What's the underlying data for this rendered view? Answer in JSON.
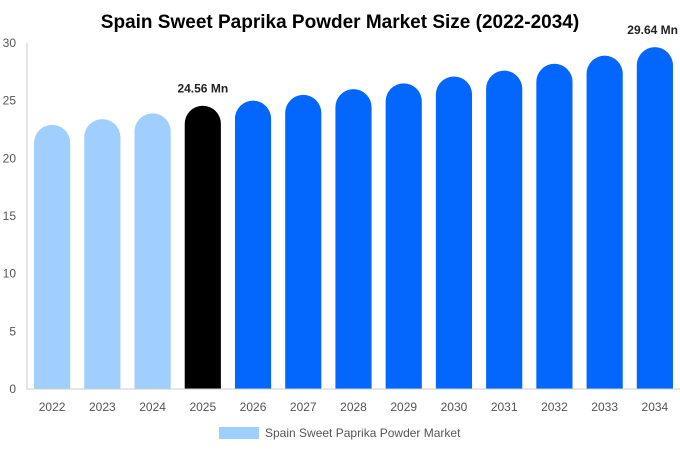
{
  "chart_data": {
    "type": "bar",
    "title": "Spain Sweet Paprika Powder Market Size (2022-2034)",
    "categories": [
      "2022",
      "2023",
      "2024",
      "2025",
      "2026",
      "2027",
      "2028",
      "2029",
      "2030",
      "2031",
      "2032",
      "2033",
      "2034"
    ],
    "series": [
      {
        "name": "Spain Sweet Paprika Powder Market",
        "values": [
          22.9,
          23.4,
          23.9,
          24.56,
          25.0,
          25.5,
          26.0,
          26.5,
          27.1,
          27.6,
          28.2,
          28.9,
          29.64
        ]
      }
    ],
    "data_labels": [
      {
        "category": "2025",
        "text": "24.56 Mn"
      },
      {
        "category": "2034",
        "text": "29.64 Mn"
      }
    ],
    "ylim": [
      0,
      30
    ],
    "yticks": [
      0,
      5,
      10,
      15,
      20,
      25,
      30
    ],
    "xlabel": "",
    "ylabel": "",
    "grid": false,
    "legend_position": "bottom",
    "colors": {
      "historical": "#a0cfff",
      "base_year": "#000000",
      "forecast": "#0366fd",
      "legend_swatch": "#a0cfff",
      "axis": "#cccccc"
    },
    "bar_color_roles": [
      "historical",
      "historical",
      "historical",
      "base_year",
      "forecast",
      "forecast",
      "forecast",
      "forecast",
      "forecast",
      "forecast",
      "forecast",
      "forecast",
      "forecast"
    ]
  }
}
